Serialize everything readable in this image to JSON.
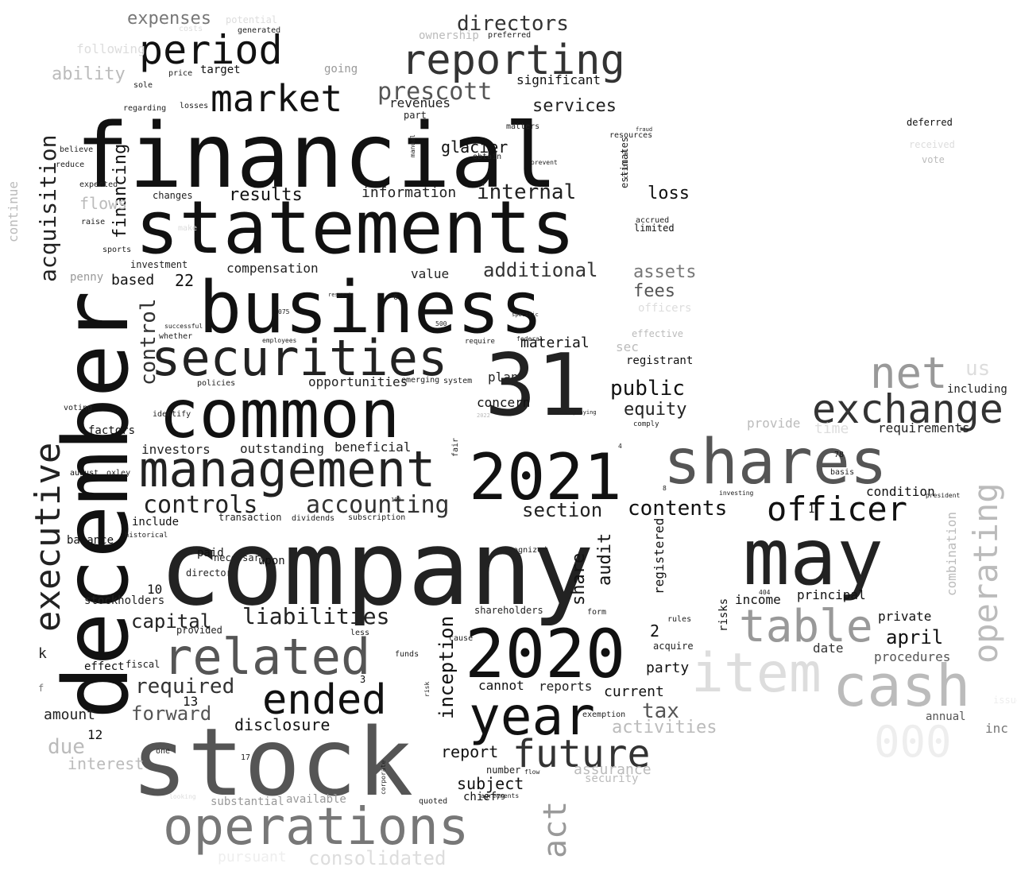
{
  "words": [
    {
      "text": "company",
      "tone": "k2"
    },
    {
      "text": "financial",
      "tone": "k1"
    },
    {
      "text": "december",
      "tone": "k1"
    },
    {
      "text": "statements",
      "tone": "k1"
    },
    {
      "text": "business",
      "tone": "k1"
    },
    {
      "text": "stock",
      "tone": "g4"
    },
    {
      "text": "31",
      "tone": "k2"
    },
    {
      "text": "common",
      "tone": "k1"
    },
    {
      "text": "2021",
      "tone": "k1"
    },
    {
      "text": "shares",
      "tone": "g4"
    },
    {
      "text": "may",
      "tone": "k2"
    },
    {
      "text": "2020",
      "tone": "k1"
    },
    {
      "text": "management",
      "tone": "k2"
    },
    {
      "text": "securities",
      "tone": "k2"
    },
    {
      "text": "operations",
      "tone": "g6"
    },
    {
      "text": "related",
      "tone": "g4"
    },
    {
      "text": "cash",
      "tone": "gb"
    },
    {
      "text": "reporting",
      "tone": "k3"
    },
    {
      "text": "year",
      "tone": "k1"
    },
    {
      "text": "executive",
      "tone": "k2"
    },
    {
      "text": "period",
      "tone": "k1"
    },
    {
      "text": "market",
      "tone": "k1"
    },
    {
      "text": "item",
      "tone": "ge"
    },
    {
      "text": "ended",
      "tone": "k1"
    },
    {
      "text": "future",
      "tone": "k3"
    },
    {
      "text": "exchange",
      "tone": "k3"
    },
    {
      "text": "table",
      "tone": "g9"
    },
    {
      "text": "officer",
      "tone": "k1"
    },
    {
      "text": "net",
      "tone": "g9"
    },
    {
      "text": "operating",
      "tone": "gb"
    },
    {
      "text": "accounting",
      "tone": "k3"
    },
    {
      "text": "controls",
      "tone": "k2"
    },
    {
      "text": "liabilities",
      "tone": "k2"
    },
    {
      "text": "acquisition",
      "tone": "k2"
    },
    {
      "text": "act",
      "tone": "g9"
    },
    {
      "text": "prescott",
      "tone": "g4"
    },
    {
      "text": "000",
      "tone": "gf"
    },
    {
      "text": "contents",
      "tone": "k1"
    },
    {
      "text": "section",
      "tone": "k2"
    },
    {
      "text": "forward",
      "tone": "g4"
    },
    {
      "text": "control",
      "tone": "k3"
    },
    {
      "text": "directors",
      "tone": "k3"
    },
    {
      "text": "required",
      "tone": "k3"
    },
    {
      "text": "capital",
      "tone": "k2"
    },
    {
      "text": "internal",
      "tone": "k2"
    },
    {
      "text": "public",
      "tone": "k1"
    },
    {
      "text": "services",
      "tone": "k2"
    },
    {
      "text": "inception",
      "tone": "k1"
    },
    {
      "text": "equity",
      "tone": "k2"
    },
    {
      "text": "results",
      "tone": "k1"
    },
    {
      "text": "april",
      "tone": "k1"
    },
    {
      "text": "additional",
      "tone": "k3"
    },
    {
      "text": "tax",
      "tone": "g4"
    },
    {
      "text": "financing",
      "tone": "k1"
    },
    {
      "text": "loss",
      "tone": "k1"
    },
    {
      "text": "share",
      "tone": "k1"
    },
    {
      "text": "audit",
      "tone": "k1"
    },
    {
      "text": "assets",
      "tone": "g6"
    },
    {
      "text": "disclosure",
      "tone": "k1"
    },
    {
      "text": "report",
      "tone": "k1"
    },
    {
      "text": "subject",
      "tone": "k1"
    },
    {
      "text": "activities",
      "tone": "gb"
    },
    {
      "text": "information",
      "tone": "k2"
    },
    {
      "text": "glacier",
      "tone": "k1"
    },
    {
      "text": "us",
      "tone": "ge"
    },
    {
      "text": "consolidated",
      "tone": "ge"
    },
    {
      "text": "expenses",
      "tone": "g6"
    },
    {
      "text": "material",
      "tone": "k1"
    },
    {
      "text": "ability",
      "tone": "gb"
    },
    {
      "text": "revenues",
      "tone": "k2"
    },
    {
      "text": "significant",
      "tone": "k1"
    },
    {
      "text": "registered",
      "tone": "k1"
    },
    {
      "text": "compensation",
      "tone": "k2"
    },
    {
      "text": "investors",
      "tone": "k2"
    },
    {
      "text": "opportunities",
      "tone": "k2"
    },
    {
      "text": "outstanding",
      "tone": "k2"
    },
    {
      "text": "beneficial",
      "tone": "k2"
    },
    {
      "text": "fees",
      "tone": "g4"
    },
    {
      "text": "value",
      "tone": "k2"
    },
    {
      "text": "based",
      "tone": "k1"
    },
    {
      "text": "current",
      "tone": "k1"
    },
    {
      "text": "party",
      "tone": "k1"
    },
    {
      "text": "principal",
      "tone": "k1"
    },
    {
      "text": "income",
      "tone": "k1"
    },
    {
      "text": "sec",
      "tone": "gb"
    },
    {
      "text": "cannot",
      "tone": "k1"
    },
    {
      "text": "reports",
      "tone": "k2"
    },
    {
      "text": "concern",
      "tone": "k1"
    },
    {
      "text": "plan",
      "tone": "k2"
    },
    {
      "text": "including",
      "tone": "k2"
    },
    {
      "text": "requirements",
      "tone": "k2"
    },
    {
      "text": "provide",
      "tone": "gb"
    },
    {
      "text": "combination",
      "tone": "gb"
    },
    {
      "text": "date",
      "tone": "k3"
    },
    {
      "text": "procedures",
      "tone": "g4"
    },
    {
      "text": "private",
      "tone": "k1"
    },
    {
      "text": "condition",
      "tone": "k1"
    },
    {
      "text": "assurance",
      "tone": "gb"
    },
    {
      "text": "inc",
      "tone": "g6"
    },
    {
      "text": "annual",
      "tone": "g4"
    },
    {
      "text": "time",
      "tone": "ge"
    },
    {
      "text": "continue",
      "tone": "gb"
    },
    {
      "text": "penny",
      "tone": "g9"
    },
    {
      "text": "factors",
      "tone": "k1"
    },
    {
      "text": "balance",
      "tone": "k1"
    },
    {
      "text": "paid",
      "tone": "k1"
    },
    {
      "text": "upon",
      "tone": "k1"
    },
    {
      "text": "director",
      "tone": "k2"
    },
    {
      "text": "stockholders",
      "tone": "k2"
    },
    {
      "text": "provided",
      "tone": "k2"
    },
    {
      "text": "substantial",
      "tone": "g9"
    },
    {
      "text": "available",
      "tone": "g9"
    },
    {
      "text": "pursuant",
      "tone": "gf"
    },
    {
      "text": "effect",
      "tone": "k1"
    },
    {
      "text": "fiscal",
      "tone": "k2"
    },
    {
      "text": "include",
      "tone": "k1"
    },
    {
      "text": "transaction",
      "tone": "k2"
    },
    {
      "text": "subscription",
      "tone": "k2"
    },
    {
      "text": "dividends",
      "tone": "k2"
    },
    {
      "text": "investment",
      "tone": "k2"
    },
    {
      "text": "changes",
      "tone": "k2"
    },
    {
      "text": "recognized",
      "tone": "k2"
    },
    {
      "text": "shareholders",
      "tone": "k2"
    },
    {
      "text": "funds",
      "tone": "k2"
    },
    {
      "text": "risks",
      "tone": "k1"
    },
    {
      "text": "registrant",
      "tone": "k1"
    },
    {
      "text": "accrued",
      "tone": "k2"
    },
    {
      "text": "limited",
      "tone": "k1"
    },
    {
      "text": "officers",
      "tone": "ge"
    },
    {
      "text": "effective",
      "tone": "gb"
    },
    {
      "text": "acquire",
      "tone": "k2"
    },
    {
      "text": "rules",
      "tone": "k2"
    },
    {
      "text": "form",
      "tone": "k2"
    },
    {
      "text": "exemption",
      "tone": "k2"
    },
    {
      "text": "security",
      "tone": "gb"
    },
    {
      "text": "number",
      "tone": "k2"
    },
    {
      "text": "chief",
      "tone": "k1"
    },
    {
      "text": "quoted",
      "tone": "k2"
    },
    {
      "text": "going",
      "tone": "g9"
    },
    {
      "text": "target",
      "tone": "k1"
    },
    {
      "text": "price",
      "tone": "k2"
    },
    {
      "text": "sole",
      "tone": "k2"
    },
    {
      "text": "regarding",
      "tone": "k2"
    },
    {
      "text": "losses",
      "tone": "k2"
    },
    {
      "text": "generated",
      "tone": "k2"
    },
    {
      "text": "following",
      "tone": "ge"
    },
    {
      "text": "potential",
      "tone": "ge"
    },
    {
      "text": "costs",
      "tone": "ge"
    },
    {
      "text": "ownership",
      "tone": "gb"
    },
    {
      "text": "preferred",
      "tone": "k2"
    },
    {
      "text": "part",
      "tone": "k2"
    },
    {
      "text": "matters",
      "tone": "k2"
    },
    {
      "text": "obtain",
      "tone": "k2"
    },
    {
      "text": "resources",
      "tone": "k2"
    },
    {
      "text": "estimates",
      "tone": "k2"
    },
    {
      "text": "deferred",
      "tone": "k1"
    },
    {
      "text": "received",
      "tone": "ge"
    },
    {
      "text": "vote",
      "tone": "gb"
    },
    {
      "text": "make",
      "tone": "ge"
    },
    {
      "text": "raise",
      "tone": "k2"
    },
    {
      "text": "sports",
      "tone": "k2"
    },
    {
      "text": "expected",
      "tone": "k2"
    },
    {
      "text": "believe",
      "tone": "k2"
    },
    {
      "text": "reduce",
      "tone": "k2"
    },
    {
      "text": "voting",
      "tone": "k2"
    },
    {
      "text": "identify",
      "tone": "k2"
    },
    {
      "text": "whether",
      "tone": "k2"
    },
    {
      "text": "successful",
      "tone": "k2"
    },
    {
      "text": "employees",
      "tone": "k2"
    },
    {
      "text": "policies",
      "tone": "k2"
    },
    {
      "text": "system",
      "tone": "k2"
    },
    {
      "text": "emerging",
      "tone": "k2"
    },
    {
      "text": "require",
      "tone": "k2"
    },
    {
      "text": "historical",
      "tone": "k2"
    },
    {
      "text": "necessary",
      "tone": "k2"
    },
    {
      "text": "august",
      "tone": "k1"
    },
    {
      "text": "oxley",
      "tone": "k2"
    },
    {
      "text": "less",
      "tone": "k2"
    },
    {
      "text": "cause",
      "tone": "k2"
    },
    {
      "text": "risk",
      "tone": "k2"
    },
    {
      "text": "fair",
      "tone": "k2"
    },
    {
      "text": "flow",
      "tone": "k2"
    },
    {
      "text": "corporate",
      "tone": "k2"
    },
    {
      "text": "agreements",
      "tone": "k2"
    },
    {
      "text": "investing",
      "tone": "k2"
    },
    {
      "text": "president",
      "tone": "k2"
    },
    {
      "text": "basis",
      "tone": "k2"
    },
    {
      "text": "one",
      "tone": "k2"
    },
    {
      "text": "interest",
      "tone": "gb"
    },
    {
      "text": "looking",
      "tone": "ge"
    },
    {
      "text": "amount",
      "tone": "k2"
    },
    {
      "text": "due",
      "tone": "gb"
    },
    {
      "text": "issued",
      "tone": "gf"
    },
    {
      "text": "flows",
      "tone": "gb"
    },
    {
      "text": "22",
      "tone": "k1"
    },
    {
      "text": "10",
      "tone": "k1"
    },
    {
      "text": "13",
      "tone": "k1"
    },
    {
      "text": "12",
      "tone": "k1"
    },
    {
      "text": "2",
      "tone": "k1"
    },
    {
      "text": "1",
      "tone": "k1"
    },
    {
      "text": "78",
      "tone": "k1"
    },
    {
      "text": "3",
      "tone": "k1"
    },
    {
      "text": "17",
      "tone": "k2"
    },
    {
      "text": "79",
      "tone": "k2"
    },
    {
      "text": "404",
      "tone": "k2"
    },
    {
      "text": "500",
      "tone": "k2"
    },
    {
      "text": "100",
      "tone": "k2"
    },
    {
      "text": "075",
      "tone": "k2"
    },
    {
      "text": "4",
      "tone": "k2"
    },
    {
      "text": "8",
      "tone": "k2"
    },
    {
      "text": "6",
      "tone": "k2"
    },
    {
      "text": "k",
      "tone": "k2"
    },
    {
      "text": "f",
      "tone": "g6"
    },
    {
      "text": "2022",
      "tone": "gb"
    },
    {
      "text": "manual",
      "tone": "k2"
    },
    {
      "text": "fraud",
      "tone": "k2"
    },
    {
      "text": "critical",
      "tone": "k2"
    },
    {
      "text": "prevent",
      "tone": "k2"
    },
    {
      "text": "specific",
      "tone": "k2"
    },
    {
      "text": "comply",
      "tone": "k2"
    },
    {
      "text": "accompanying",
      "tone": "k2"
    },
    {
      "text": "respect",
      "tone": "k2"
    },
    {
      "text": "federal",
      "tone": "k2"
    },
    {
      "text": "material",
      "tone": "k2"
    }
  ]
}
